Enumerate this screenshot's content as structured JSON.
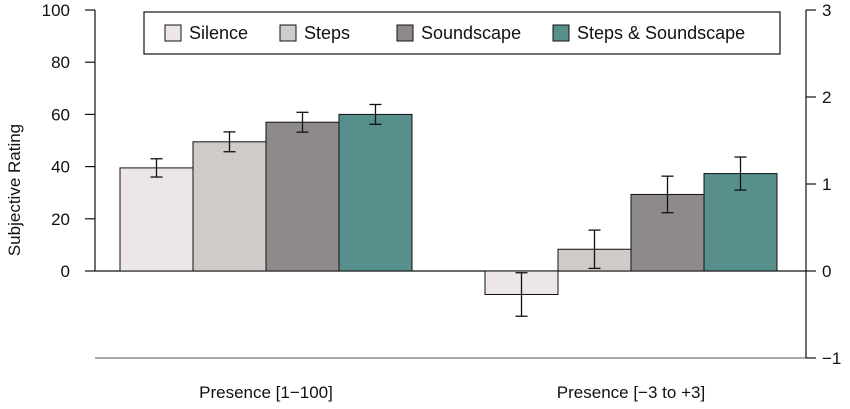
{
  "chart_data": {
    "type": "bar",
    "ylabel": "Subjective Rating",
    "legend": {
      "placement": "top",
      "entries": [
        "Silence",
        "Steps",
        "Soundscape",
        "Steps & Soundscape"
      ]
    },
    "series_colors": [
      "#ece6e6",
      "#cfcbc9",
      "#8e8a8b",
      "#568f8b"
    ],
    "groups": [
      {
        "category": "Presence [1−100]",
        "axis": "left",
        "values": [
          39.5,
          49.5,
          57,
          60
        ],
        "errors": [
          3.5,
          3.8,
          3.8,
          3.8
        ]
      },
      {
        "category": "Presence [−3 to +3]",
        "axis": "right",
        "values": [
          -0.27,
          0.25,
          0.88,
          1.12
        ],
        "errors": [
          0.25,
          0.22,
          0.21,
          0.19
        ]
      }
    ],
    "left_axis": {
      "ylim": [
        0,
        100
      ],
      "ticks": [
        "0",
        "20",
        "40",
        "60",
        "80",
        "100"
      ]
    },
    "right_axis": {
      "ylim": [
        -1,
        3
      ],
      "ticks": [
        "−1",
        "0",
        "1",
        "2",
        "3"
      ]
    },
    "grid": false
  }
}
